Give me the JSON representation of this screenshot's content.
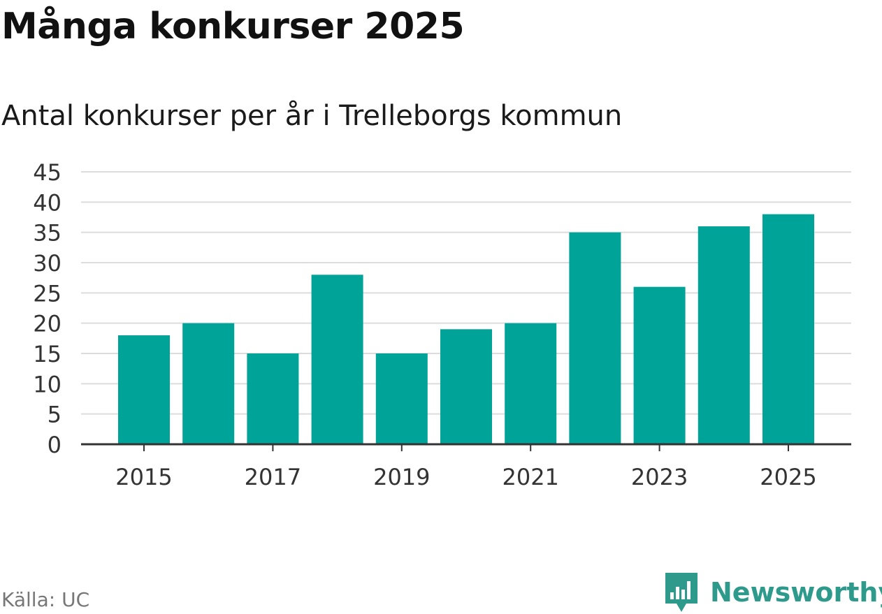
{
  "header": {
    "title": "Många konkurser 2025",
    "subtitle": "Antal konkurser per år i Trelleborgs kommun"
  },
  "footer": {
    "source": "Källa: UC",
    "brand": "Newsworthy"
  },
  "colors": {
    "bar": "#00a398",
    "grid": "#dcdcdc",
    "axis": "#333333",
    "brand": "#2e9a8c"
  },
  "chart_data": {
    "type": "bar",
    "title": "Många konkurser 2025",
    "subtitle": "Antal konkurser per år i Trelleborgs kommun",
    "xlabel": "",
    "ylabel": "",
    "categories": [
      "2015",
      "2016",
      "2017",
      "2018",
      "2019",
      "2020",
      "2021",
      "2022",
      "2023",
      "2024",
      "2025"
    ],
    "values": [
      18,
      20,
      15,
      28,
      15,
      19,
      20,
      35,
      26,
      36,
      38
    ],
    "ylim": [
      0,
      45
    ],
    "yticks": [
      "0",
      "5",
      "10",
      "15",
      "20",
      "25",
      "30",
      "35",
      "40",
      "45"
    ],
    "xtick_labels": [
      "2015",
      "2017",
      "2019",
      "2021",
      "2023",
      "2025"
    ],
    "grid": true,
    "legend": "none"
  }
}
